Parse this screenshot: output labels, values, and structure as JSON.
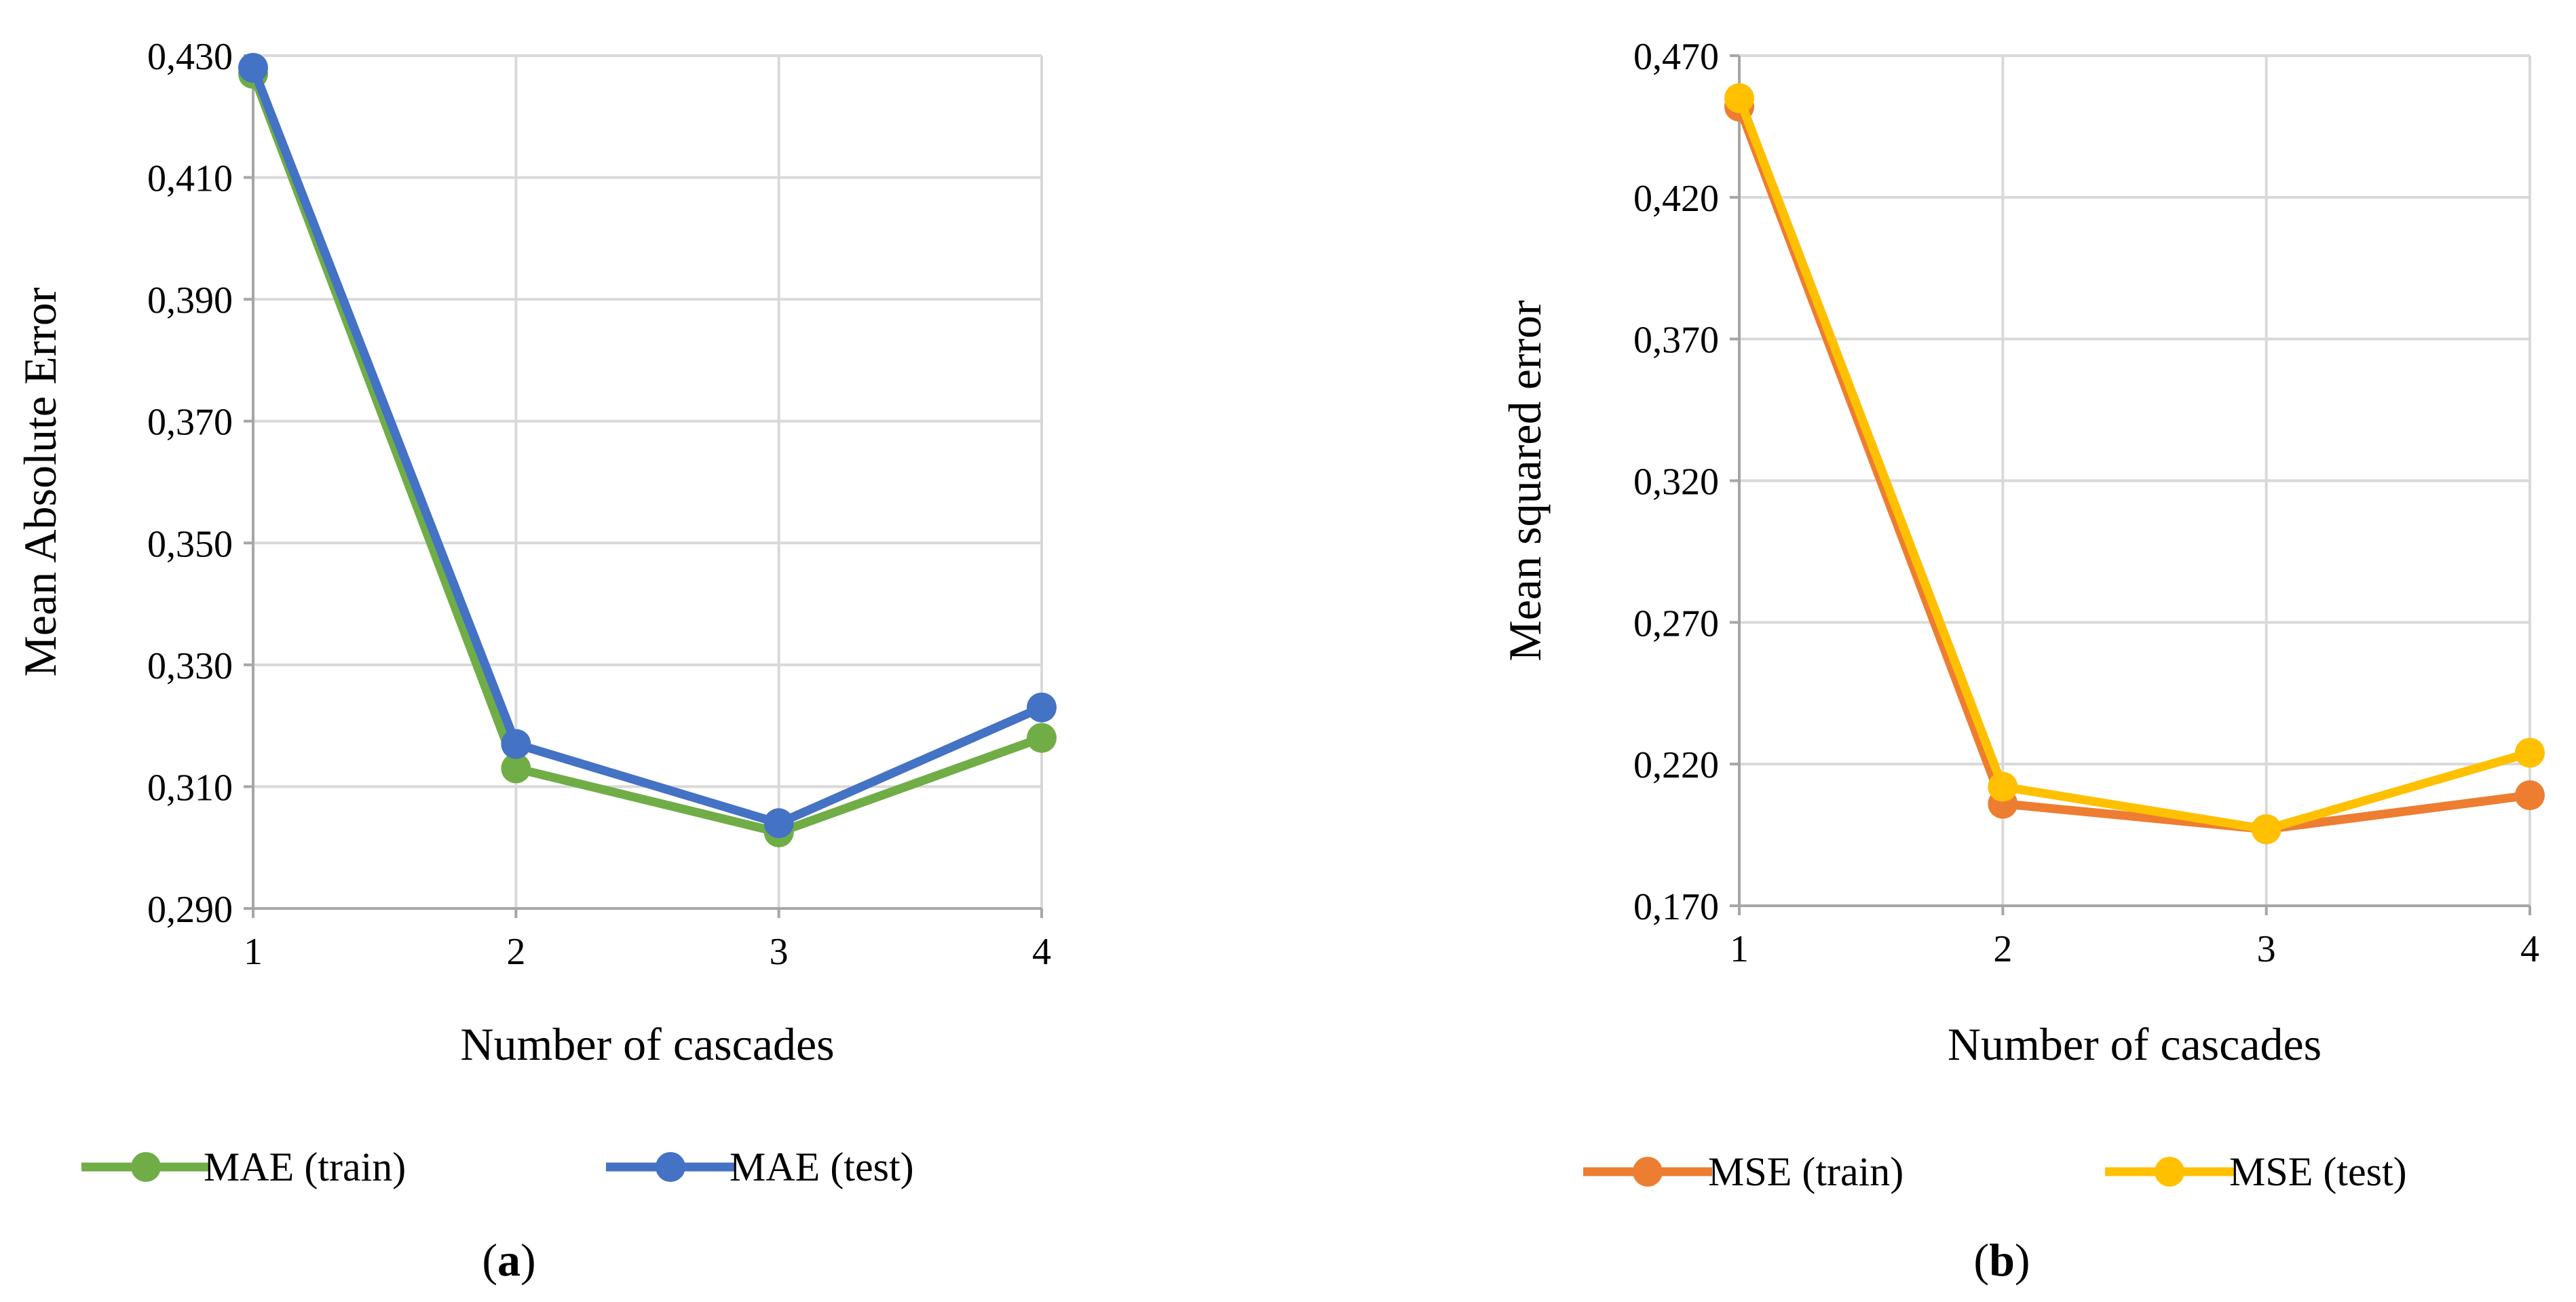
{
  "chart_data": [
    {
      "type": "line",
      "panel": "a",
      "caption": {
        "open": "(",
        "letter": "a",
        "close": ")"
      },
      "title": "",
      "xlabel": "Number of cascades",
      "ylabel": "Mean Absolute Error",
      "x": [
        1,
        2,
        3,
        4
      ],
      "x_tick_labels": [
        "1",
        "2",
        "3",
        "4"
      ],
      "ylim": [
        0.29,
        0.43
      ],
      "y_ticks": [
        0.29,
        0.31,
        0.33,
        0.35,
        0.37,
        0.39,
        0.41,
        0.43
      ],
      "y_tick_labels": [
        "0,290",
        "0,310",
        "0,330",
        "0,350",
        "0,370",
        "0,390",
        "0,410",
        "0,430"
      ],
      "grid": true,
      "legend_position": "bottom",
      "series": [
        {
          "name": "MAE (train)",
          "color": "#70ad47",
          "values": [
            0.427,
            0.313,
            0.3025,
            0.318
          ]
        },
        {
          "name": "MAE (test)",
          "color": "#4472c4",
          "values": [
            0.428,
            0.317,
            0.304,
            0.323
          ]
        }
      ]
    },
    {
      "type": "line",
      "panel": "b",
      "caption": {
        "open": "(",
        "letter": "b",
        "close": ")"
      },
      "title": "",
      "xlabel": "Number of cascades",
      "ylabel": "Mean squared error",
      "x": [
        1,
        2,
        3,
        4
      ],
      "x_tick_labels": [
        "1",
        "2",
        "3",
        "4"
      ],
      "ylim": [
        0.17,
        0.47
      ],
      "y_ticks": [
        0.17,
        0.22,
        0.27,
        0.32,
        0.37,
        0.42,
        0.47
      ],
      "y_tick_labels": [
        "0,170",
        "0,220",
        "0,270",
        "0,320",
        "0,370",
        "0,420",
        "0,470"
      ],
      "grid": true,
      "legend_position": "bottom",
      "series": [
        {
          "name": "MSE (train)",
          "color": "#ed7d31",
          "values": [
            0.452,
            0.206,
            0.197,
            0.209
          ]
        },
        {
          "name": "MSE (test)",
          "color": "#ffc000",
          "values": [
            0.455,
            0.212,
            0.197,
            0.224
          ]
        }
      ]
    }
  ]
}
